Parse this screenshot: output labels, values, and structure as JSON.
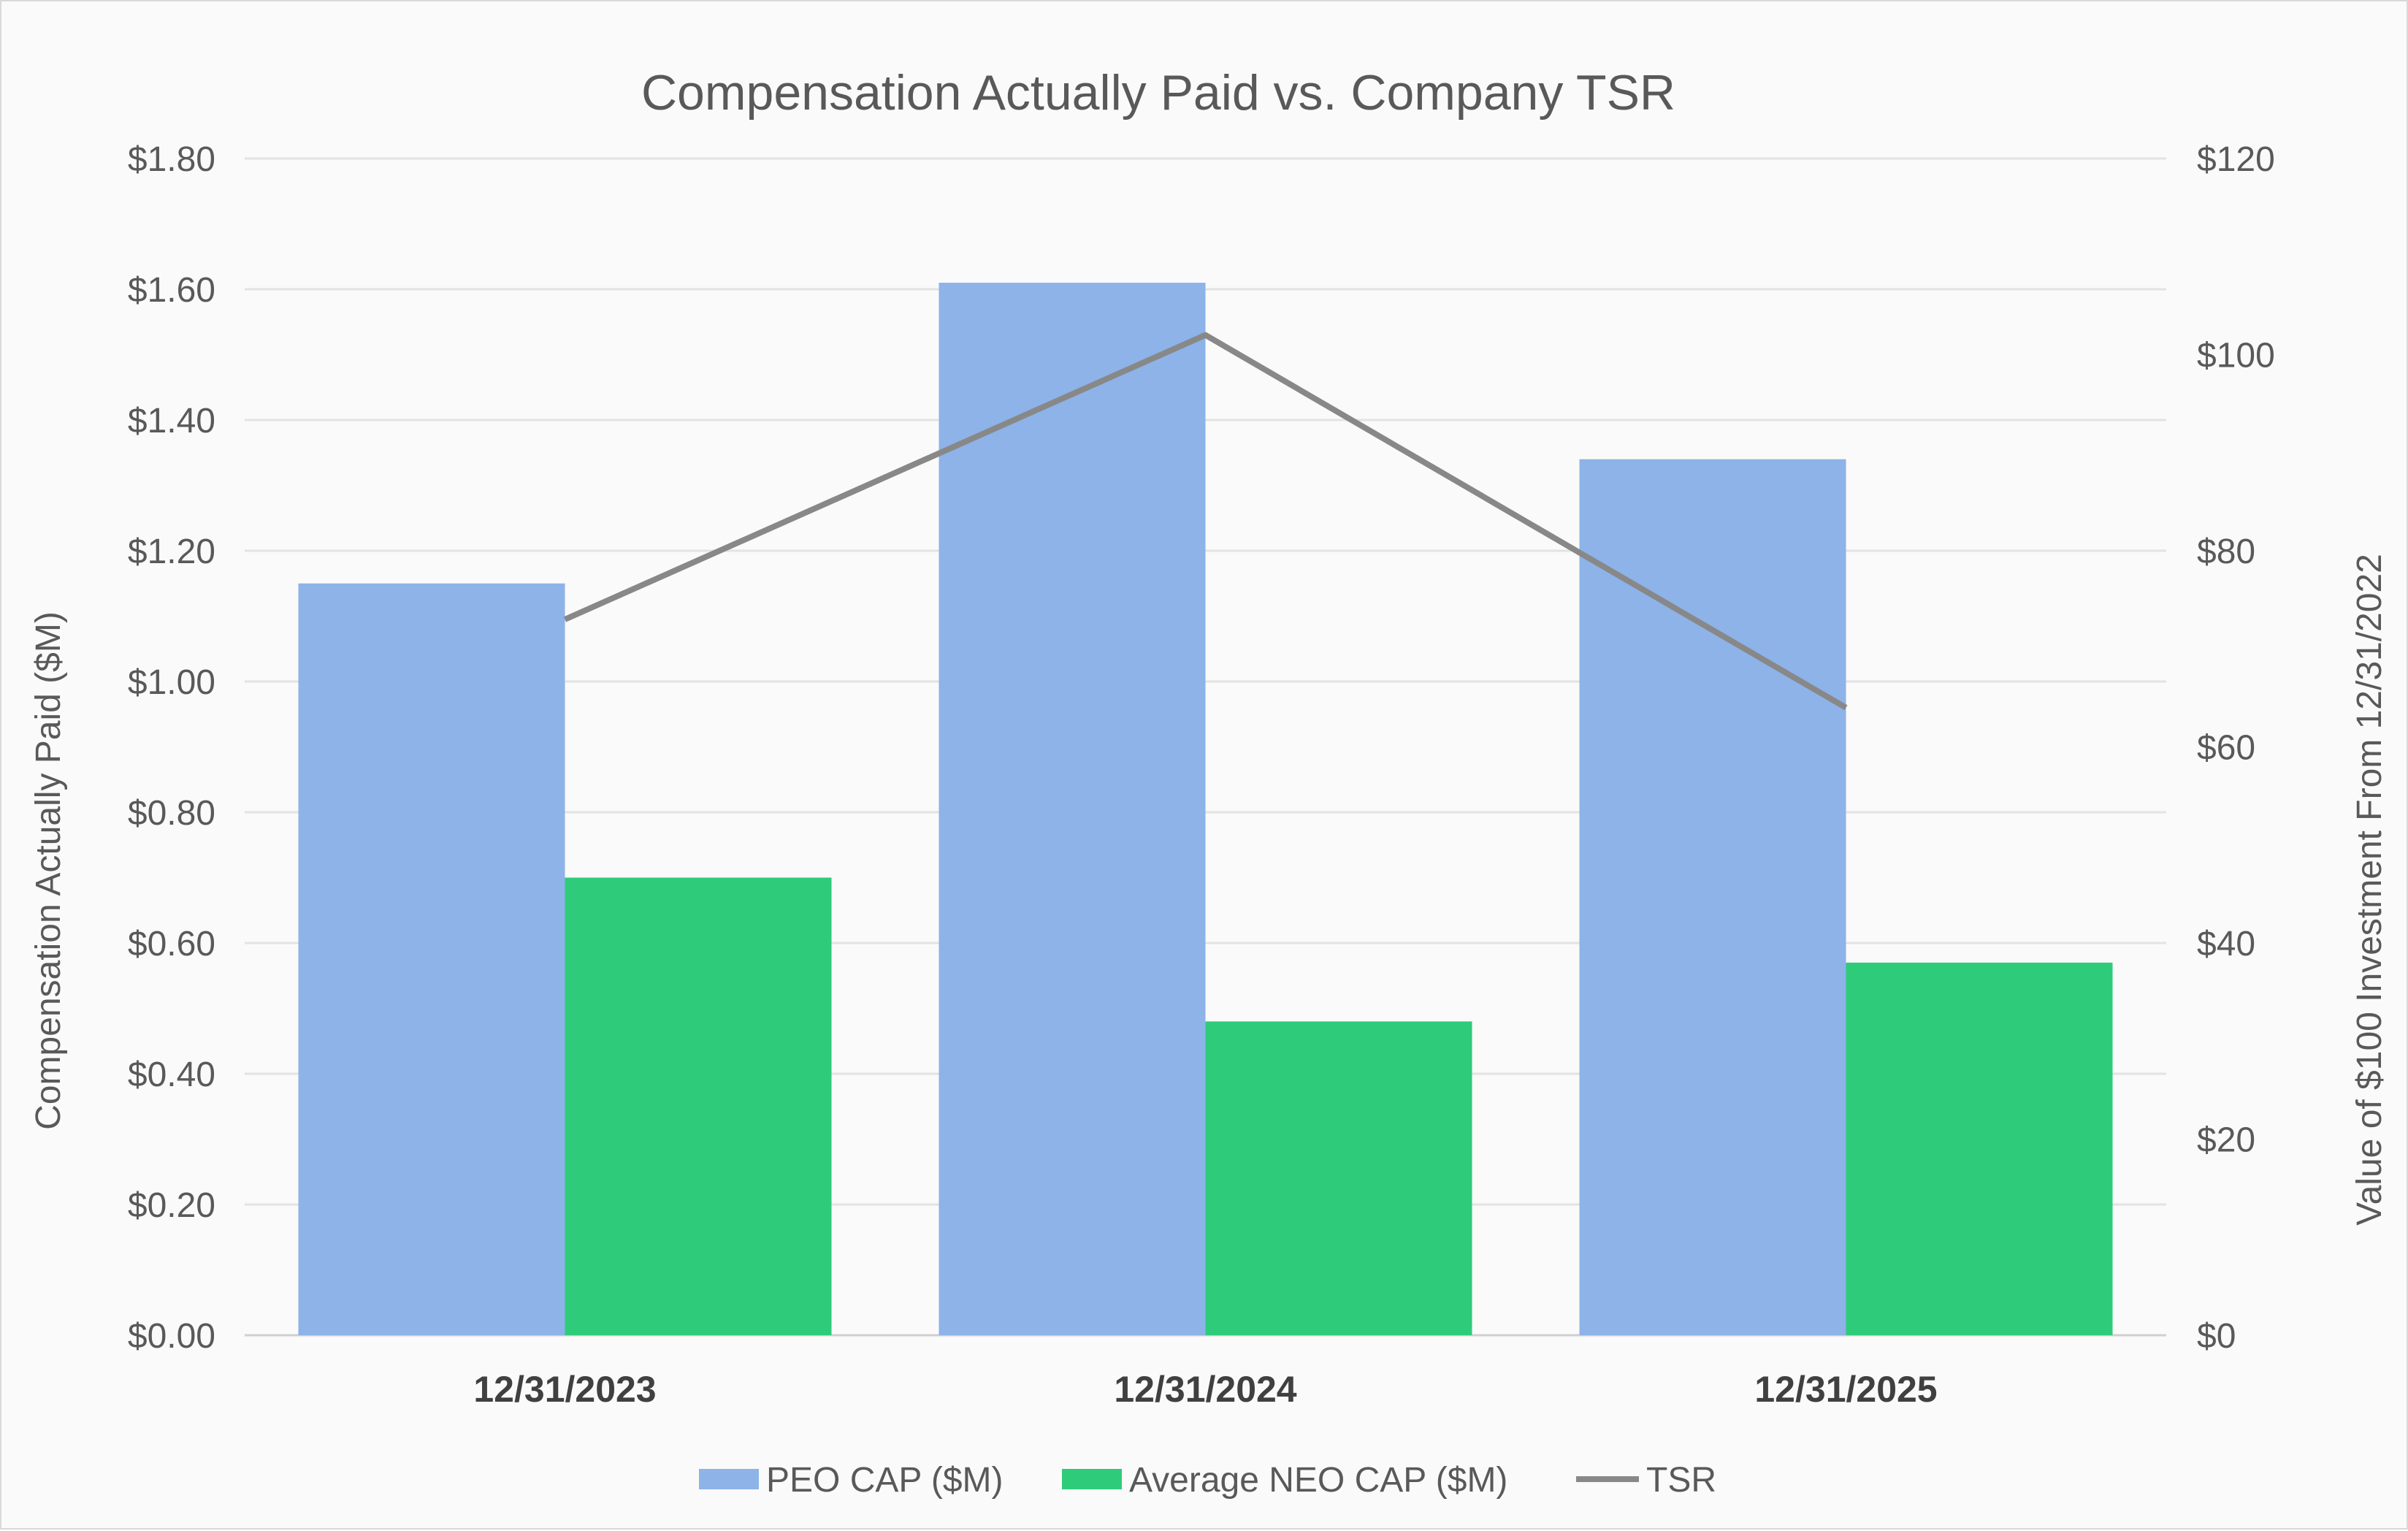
{
  "chart_data": {
    "type": "bar",
    "title": "Compensation Actually Paid vs. Company TSR",
    "categories": [
      "12/31/2023",
      "12/31/2024",
      "12/31/2025"
    ],
    "series": [
      {
        "name": "PEO CAP ($M)",
        "type": "bar",
        "axis": "left",
        "color": "#8db3e8",
        "values": [
          1.15,
          1.61,
          1.34
        ]
      },
      {
        "name": "Average NEO CAP ($M)",
        "type": "bar",
        "axis": "left",
        "color": "#2ecc7a",
        "values": [
          0.7,
          0.48,
          0.57
        ]
      },
      {
        "name": "TSR",
        "type": "line",
        "axis": "right",
        "color": "#888888",
        "values": [
          73,
          102,
          64
        ]
      }
    ],
    "ylabel": "Compensation Actually Paid ($M)",
    "ylim": [
      0,
      1.8
    ],
    "y_ticks": [
      "$0.00",
      "$0.20",
      "$0.40",
      "$0.60",
      "$0.80",
      "$1.00",
      "$1.20",
      "$1.40",
      "$1.60",
      "$1.80"
    ],
    "y2label": "Value of $100 Investment From 12/31/2022",
    "y2lim": [
      0,
      120
    ],
    "y2_ticks": [
      "$0",
      "$20",
      "$40",
      "$60",
      "$80",
      "$100",
      "$120"
    ],
    "grid": true,
    "legend_position": "bottom"
  }
}
